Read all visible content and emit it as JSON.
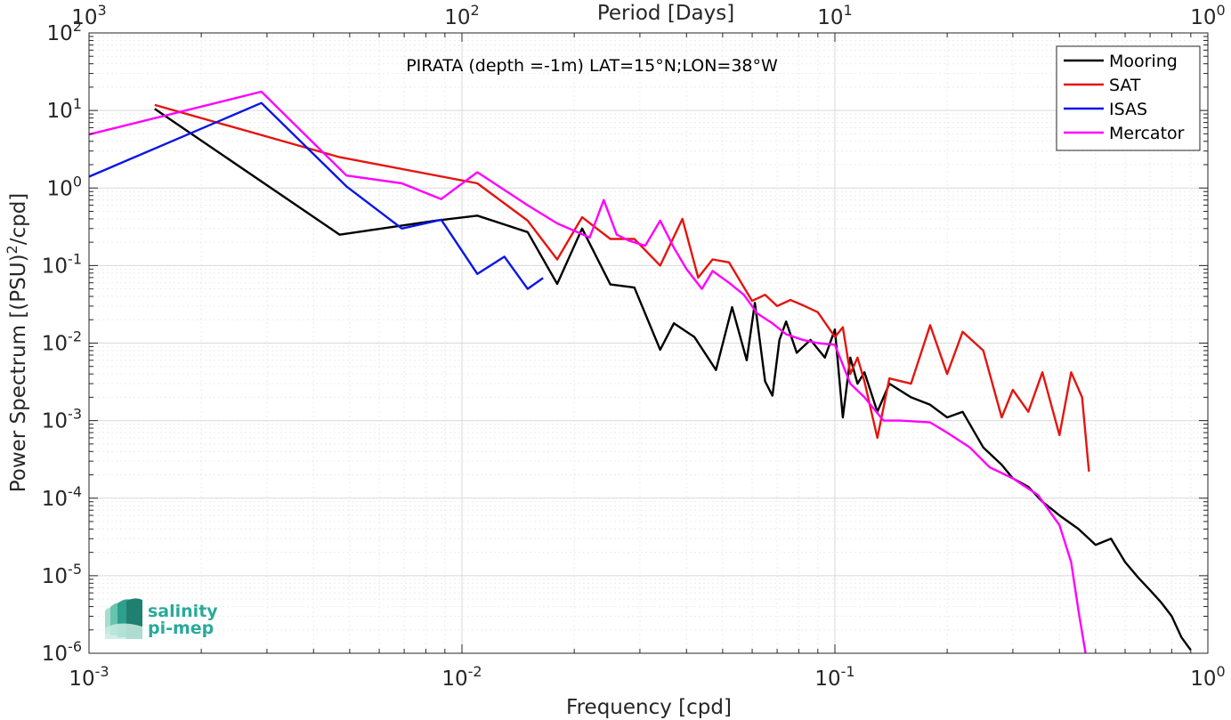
{
  "chart_data": {
    "type": "line",
    "title": "PIRATA (depth =-1m) LAT=15°N;LON=38°W",
    "xlabel": "Frequency [cpd]",
    "ylabel": "Power Spectrum [(PSU)²/cpd]",
    "top_xlabel": "Period [Days]",
    "x_scale": "log",
    "y_scale": "log",
    "xlim": [
      0.001,
      1
    ],
    "ylim": [
      1e-06,
      100
    ],
    "grid": true,
    "legend_position": "top-right",
    "x_ticks": [
      {
        "value": 0.001,
        "base": "10",
        "exp": "-3"
      },
      {
        "value": 0.01,
        "base": "10",
        "exp": "-2"
      },
      {
        "value": 0.1,
        "base": "10",
        "exp": "-1"
      },
      {
        "value": 1,
        "base": "10",
        "exp": "0"
      }
    ],
    "y_ticks": [
      {
        "value": 1e-06,
        "base": "10",
        "exp": "-6"
      },
      {
        "value": 1e-05,
        "base": "10",
        "exp": "-5"
      },
      {
        "value": 0.0001,
        "base": "10",
        "exp": "-4"
      },
      {
        "value": 0.001,
        "base": "10",
        "exp": "-3"
      },
      {
        "value": 0.01,
        "base": "10",
        "exp": "-2"
      },
      {
        "value": 0.1,
        "base": "10",
        "exp": "-1"
      },
      {
        "value": 1,
        "base": "10",
        "exp": "0"
      },
      {
        "value": 10,
        "base": "10",
        "exp": "1"
      },
      {
        "value": 100,
        "base": "10",
        "exp": "2"
      }
    ],
    "top_ticks": [
      {
        "value": 0.001,
        "base": "10",
        "exp": "3"
      },
      {
        "value": 0.01,
        "base": "10",
        "exp": "2"
      },
      {
        "value": 0.1,
        "base": "10",
        "exp": "1"
      },
      {
        "value": 1,
        "base": "10",
        "exp": "0"
      }
    ],
    "series": [
      {
        "name": "Mooring",
        "color": "#000000",
        "x": [
          0.0015,
          0.0047,
          0.0085,
          0.011,
          0.015,
          0.018,
          0.021,
          0.025,
          0.029,
          0.034,
          0.037,
          0.042,
          0.048,
          0.053,
          0.058,
          0.061,
          0.065,
          0.068,
          0.071,
          0.074,
          0.079,
          0.086,
          0.094,
          0.1,
          0.105,
          0.11,
          0.115,
          0.12,
          0.13,
          0.14,
          0.16,
          0.18,
          0.2,
          0.22,
          0.25,
          0.28,
          0.3,
          0.33,
          0.36,
          0.4,
          0.45,
          0.5,
          0.55,
          0.6,
          0.65,
          0.7,
          0.75,
          0.8,
          0.85,
          0.9
        ],
        "y": [
          10.5,
          0.25,
          0.38,
          0.44,
          0.27,
          0.058,
          0.3,
          0.057,
          0.052,
          0.0082,
          0.018,
          0.012,
          0.0045,
          0.029,
          0.006,
          0.033,
          0.0032,
          0.0021,
          0.011,
          0.019,
          0.0075,
          0.011,
          0.0065,
          0.015,
          0.0011,
          0.0065,
          0.003,
          0.0042,
          0.0013,
          0.003,
          0.002,
          0.0016,
          0.0011,
          0.0013,
          0.00045,
          0.00027,
          0.00018,
          0.00014,
          9e-05,
          6e-05,
          4e-05,
          2.5e-05,
          3e-05,
          1.5e-05,
          9.5e-06,
          6.5e-06,
          4.5e-06,
          3e-06,
          1.6e-06,
          1.1e-06
        ]
      },
      {
        "name": "SAT",
        "color": "#e4150f",
        "x": [
          0.0015,
          0.0047,
          0.011,
          0.015,
          0.018,
          0.021,
          0.025,
          0.029,
          0.034,
          0.039,
          0.043,
          0.047,
          0.052,
          0.06,
          0.065,
          0.07,
          0.076,
          0.083,
          0.09,
          0.1,
          0.105,
          0.11,
          0.115,
          0.12,
          0.13,
          0.14,
          0.16,
          0.18,
          0.2,
          0.22,
          0.25,
          0.28,
          0.3,
          0.33,
          0.36,
          0.4,
          0.43,
          0.46,
          0.48
        ],
        "y": [
          11.8,
          2.5,
          1.15,
          0.38,
          0.12,
          0.42,
          0.22,
          0.22,
          0.1,
          0.4,
          0.07,
          0.12,
          0.11,
          0.035,
          0.042,
          0.03,
          0.036,
          0.03,
          0.025,
          0.012,
          0.016,
          0.004,
          0.0065,
          0.0032,
          0.0006,
          0.0035,
          0.003,
          0.017,
          0.004,
          0.014,
          0.008,
          0.0011,
          0.0025,
          0.0013,
          0.0042,
          0.00065,
          0.0042,
          0.002,
          0.00022
        ]
      },
      {
        "name": "ISAS",
        "color": "#0a15e6",
        "x": [
          0.001,
          0.0029,
          0.0049,
          0.0069,
          0.0088,
          0.011,
          0.013,
          0.015,
          0.0165
        ],
        "y": [
          1.4,
          12.5,
          1.05,
          0.3,
          0.39,
          0.078,
          0.13,
          0.05,
          0.069
        ]
      },
      {
        "name": "Mercator",
        "color": "#ff00ff",
        "x": [
          0.001,
          0.0029,
          0.0049,
          0.0069,
          0.0088,
          0.011,
          0.015,
          0.018,
          0.022,
          0.024,
          0.026,
          0.028,
          0.031,
          0.034,
          0.037,
          0.04,
          0.044,
          0.047,
          0.052,
          0.057,
          0.062,
          0.068,
          0.074,
          0.082,
          0.09,
          0.1,
          0.11,
          0.12,
          0.135,
          0.15,
          0.18,
          0.2,
          0.23,
          0.26,
          0.3,
          0.35,
          0.4,
          0.43,
          0.45,
          0.47
        ],
        "y": [
          4.9,
          17.5,
          1.45,
          1.15,
          0.72,
          1.6,
          0.6,
          0.35,
          0.23,
          0.7,
          0.25,
          0.21,
          0.18,
          0.38,
          0.17,
          0.09,
          0.05,
          0.085,
          0.06,
          0.042,
          0.024,
          0.018,
          0.013,
          0.011,
          0.01,
          0.0095,
          0.003,
          0.002,
          0.001,
          0.001,
          0.00095,
          0.0007,
          0.00045,
          0.00025,
          0.00018,
          0.00011,
          4.5e-05,
          1.5e-05,
          3.5e-06,
          1e-06
        ]
      }
    ]
  },
  "logo": {
    "line1": "salinity",
    "line2": "pi-mep"
  }
}
